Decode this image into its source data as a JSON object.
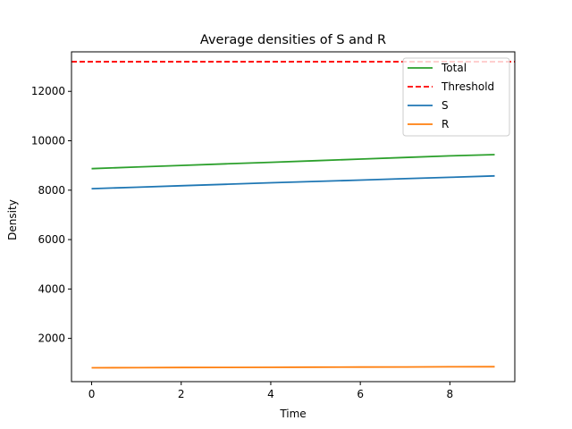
{
  "chart_data": {
    "type": "line",
    "title": "Average densities of S and R",
    "xlabel": "Time",
    "ylabel": "Density",
    "xlim": [
      -0.45,
      9.45
    ],
    "ylim": [
      250,
      13600
    ],
    "xticks": [
      0,
      2,
      4,
      6,
      8
    ],
    "xtick_labels": [
      "0",
      "2",
      "4",
      "6",
      "8"
    ],
    "yticks": [
      2000,
      4000,
      6000,
      8000,
      10000,
      12000
    ],
    "ytick_labels": [
      "2000",
      "4000",
      "6000",
      "8000",
      "10000",
      "12000"
    ],
    "grid": false,
    "legend_position": "top-right",
    "x": [
      0,
      1,
      2,
      3,
      4,
      5,
      6,
      7,
      8,
      9
    ],
    "series": [
      {
        "name": "Total",
        "color": "#2ca02c",
        "style": "solid",
        "values": [
          8870,
          8935,
          9000,
          9065,
          9130,
          9195,
          9260,
          9325,
          9390,
          9440
        ]
      },
      {
        "name": "S",
        "color": "#1f77b4",
        "style": "solid",
        "values": [
          8060,
          8120,
          8180,
          8240,
          8300,
          8355,
          8410,
          8465,
          8520,
          8580
        ]
      },
      {
        "name": "R",
        "color": "#ff7f0e",
        "style": "solid",
        "values": [
          810,
          815,
          820,
          825,
          830,
          835,
          840,
          845,
          850,
          855
        ]
      }
    ],
    "threshold": {
      "name": "Threshold",
      "value": 13200,
      "color": "#ff0000",
      "style": "dashed"
    },
    "legend_entries": [
      "Total",
      "Threshold",
      "S",
      "R"
    ]
  }
}
